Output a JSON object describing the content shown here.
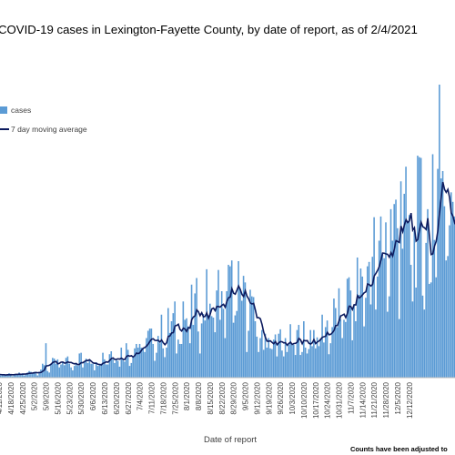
{
  "chart_data": {
    "type": "bar",
    "title": "COVID-19 cases in Lexington-Fayette County, by date of report, as of 2/4/2021",
    "xlabel": "Date of report",
    "ylabel": "",
    "note": "Counts have been adjusted to",
    "colors": {
      "bars": "#5b9bd5",
      "line": "#0d1b5e",
      "background": "#ffffff"
    },
    "ylim": [
      0,
      400
    ],
    "grid": false,
    "legend_position": "top-left",
    "x_ticks": [
      "4/11/2020",
      "4/18/2020",
      "4/25/2020",
      "5/2/2020",
      "5/9/2020",
      "5/16/2020",
      "5/23/2020",
      "5/30/2020",
      "6/6/2020",
      "6/13/2020",
      "6/20/2020",
      "6/27/2020",
      "7/4/2020",
      "7/11/2020",
      "7/18/2020",
      "7/25/2020",
      "8/1/2020",
      "8/8/2020",
      "8/15/2020",
      "8/22/2020",
      "8/29/2020",
      "9/5/2020",
      "9/12/2020",
      "9/19/2020",
      "9/26/2020",
      "10/3/2020",
      "10/10/2020",
      "10/17/2020",
      "10/24/2020",
      "10/31/2020",
      "11/7/2020",
      "11/14/2020",
      "11/21/2020",
      "11/28/2020",
      "12/5/2020",
      "12/12/2020"
    ],
    "x_start": "2020-04-07",
    "series": [
      {
        "name": "cases",
        "type": "bar",
        "values": []
      },
      {
        "name": "7 day moving average",
        "type": "line",
        "values": []
      }
    ]
  }
}
